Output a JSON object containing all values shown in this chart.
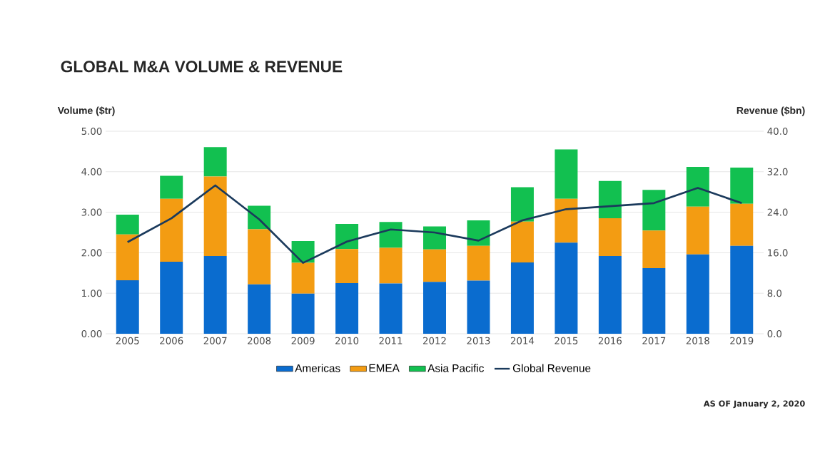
{
  "chart_data": {
    "type": "bar",
    "title": "GLOBAL M&A VOLUME & REVENUE",
    "ylabel": "Volume ($tr)",
    "y2label": "Revenue ($bn)",
    "categories": [
      "2005",
      "2006",
      "2007",
      "2008",
      "2009",
      "2010",
      "2011",
      "2012",
      "2013",
      "2014",
      "2015",
      "2016",
      "2017",
      "2018",
      "2019"
    ],
    "stacked": true,
    "series": [
      {
        "name": "Americas",
        "color": "#0a6ccf",
        "values": [
          1.32,
          1.78,
          1.92,
          1.22,
          0.99,
          1.25,
          1.24,
          1.28,
          1.31,
          1.76,
          2.25,
          1.92,
          1.62,
          1.96,
          2.17
        ]
      },
      {
        "name": "EMEA",
        "color": "#f39c12",
        "values": [
          1.13,
          1.55,
          1.96,
          1.36,
          0.76,
          0.84,
          0.88,
          0.8,
          0.86,
          1.01,
          1.08,
          0.93,
          0.93,
          1.18,
          1.04
        ]
      },
      {
        "name": "Asia Pacific",
        "color": "#12c050",
        "values": [
          0.49,
          0.57,
          0.73,
          0.58,
          0.54,
          0.62,
          0.64,
          0.57,
          0.63,
          0.85,
          1.22,
          0.92,
          1.0,
          0.98,
          0.89
        ]
      },
      {
        "name": "Global Revenue",
        "type": "line",
        "axis": "y2",
        "color": "#1b3a5c",
        "values": [
          18.1,
          22.8,
          29.3,
          22.6,
          14.0,
          18.2,
          20.6,
          20.0,
          18.4,
          22.4,
          24.6,
          25.2,
          25.8,
          28.8,
          25.8
        ]
      }
    ],
    "ylim": [
      0,
      5
    ],
    "yticks": [
      {
        "value": 0,
        "label": "0.00"
      },
      {
        "value": 1,
        "label": "1.00"
      },
      {
        "value": 2,
        "label": "2.00"
      },
      {
        "value": 3,
        "label": "3.00"
      },
      {
        "value": 4,
        "label": "4.00"
      },
      {
        "value": 5,
        "label": "5.00"
      }
    ],
    "y2lim": [
      0,
      40
    ],
    "y2ticks": [
      {
        "value": 0,
        "label": "0.0"
      },
      {
        "value": 8,
        "label": "8.0"
      },
      {
        "value": 16,
        "label": "16.0"
      },
      {
        "value": 24,
        "label": "24.0"
      },
      {
        "value": 32,
        "label": "32.0"
      },
      {
        "value": 40,
        "label": "40.0"
      }
    ],
    "grid": "y",
    "legend": "bottom",
    "annotations": [
      "AS OF January 2, 2020"
    ]
  }
}
